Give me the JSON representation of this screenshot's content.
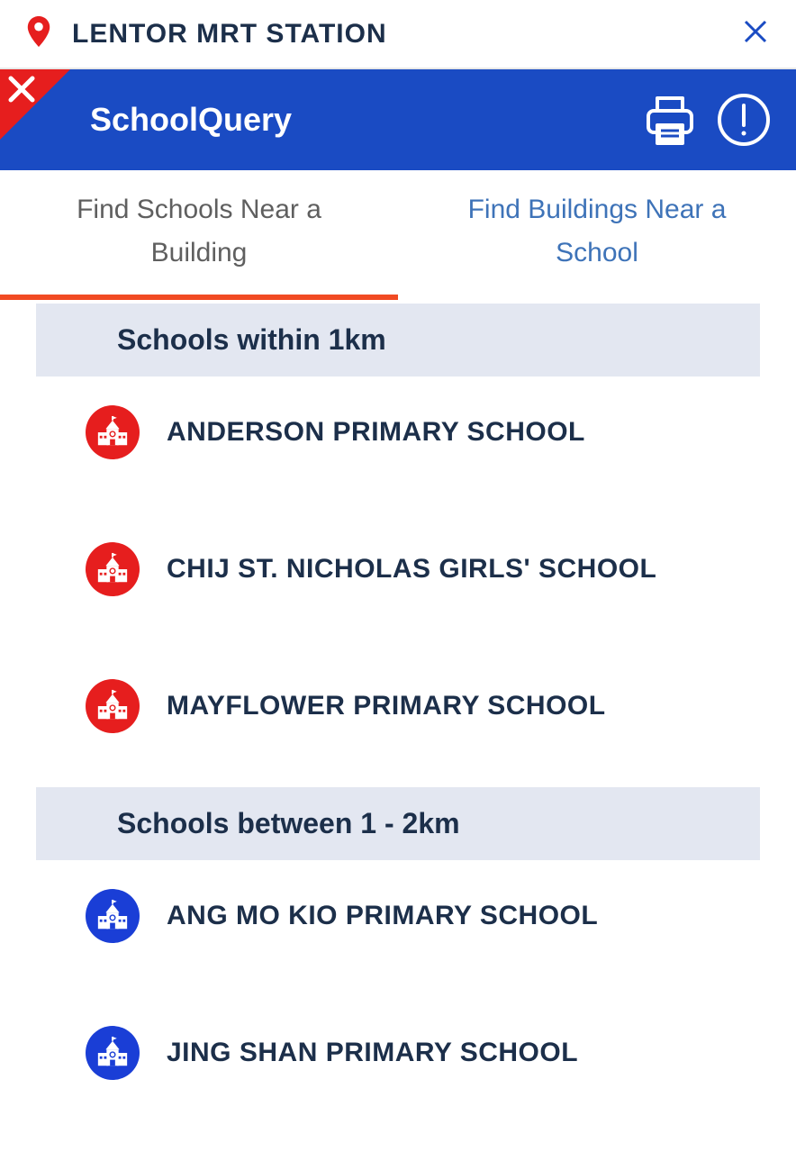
{
  "search": {
    "value": "LENTOR MRT STATION"
  },
  "header": {
    "title": "SchoolQuery"
  },
  "tabs": {
    "active": "Find Schools Near a Building",
    "inactive": "Find Buildings Near a School"
  },
  "colors": {
    "header_bg": "#1a4bc3",
    "close_corner": "#e61e1e",
    "tab_active_text": "#5f5f5f",
    "tab_active_underline": "#f14a23",
    "tab_inactive_text": "#3e73b8",
    "section_bg": "#e3e7f1",
    "text_primary": "#1c2f4a",
    "pin_color": "#e61e1e",
    "school_icon_within1km": "#e61e1e",
    "school_icon_between1_2km": "#1a3ed6"
  },
  "sections": [
    {
      "title": "Schools within 1km",
      "icon_color": "#e61e1e",
      "schools": [
        "ANDERSON PRIMARY SCHOOL",
        "CHIJ ST. NICHOLAS GIRLS' SCHOOL",
        "MAYFLOWER PRIMARY SCHOOL"
      ]
    },
    {
      "title": "Schools between 1 - 2km",
      "icon_color": "#1a3ed6",
      "schools": [
        "ANG MO KIO PRIMARY SCHOOL",
        "JING SHAN PRIMARY SCHOOL"
      ]
    }
  ]
}
